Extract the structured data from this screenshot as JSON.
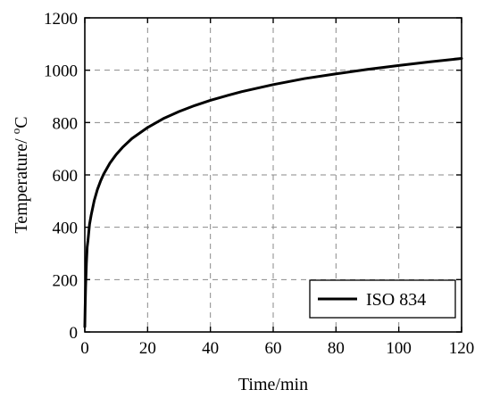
{
  "chart_data": {
    "type": "line",
    "xlabel": "Time/min",
    "ylabel_main": "Temperature/ ",
    "ylabel_sup": "o",
    "ylabel_unit": "C",
    "xlim": [
      0,
      120
    ],
    "ylim": [
      0,
      1200
    ],
    "xticks": [
      0,
      20,
      40,
      60,
      80,
      100,
      120
    ],
    "yticks": [
      0,
      200,
      400,
      600,
      800,
      1000,
      1200
    ],
    "grid": true,
    "legend_position": "bottom-right",
    "series": [
      {
        "name": "ISO 834",
        "color": "#000000",
        "x": [
          0,
          0.1,
          0.25,
          0.5,
          0.75,
          1,
          1.5,
          2,
          3,
          4,
          5,
          6,
          8,
          10,
          12,
          15,
          20,
          25,
          30,
          35,
          40,
          45,
          50,
          60,
          70,
          80,
          90,
          100,
          110,
          120
        ],
        "y": [
          20,
          90,
          170,
          261,
          324,
          349,
          411,
          445,
          502,
          544,
          576,
          603,
          645,
          678,
          705,
          739,
          781,
          815,
          842,
          865,
          885,
          902,
          918,
          945,
          968,
          986,
          1003,
          1018,
          1032,
          1045
        ]
      }
    ]
  }
}
